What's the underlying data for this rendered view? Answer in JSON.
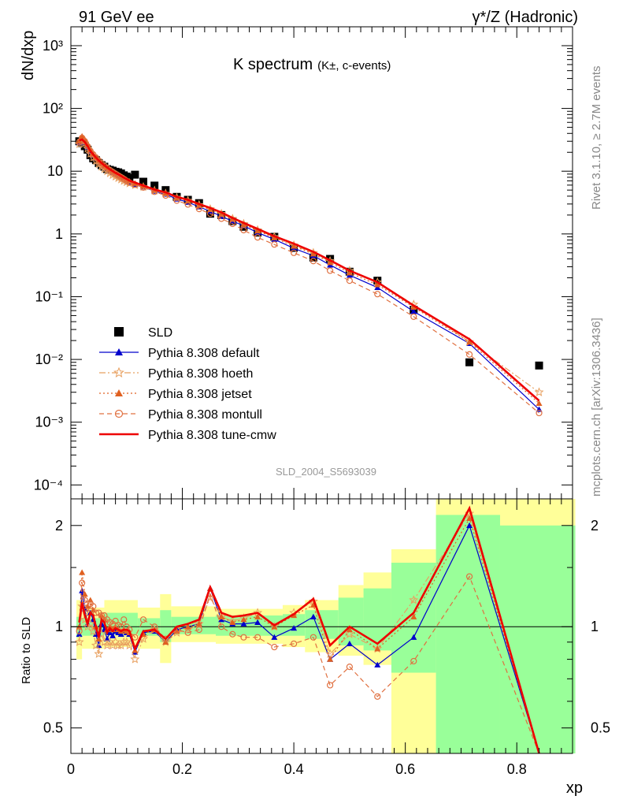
{
  "header": {
    "left": "91 GeV ee",
    "right": "γ*/Z (Hadronic)"
  },
  "side": {
    "rivet": "Rivet 3.1.10, ≥ 2.7M events",
    "mcplots": "mcplots.cern.ch [arXiv:1306.3436]"
  },
  "colors": {
    "sld": "#000000",
    "default": "#0000cc",
    "hoeth": "#e8a060",
    "jetset": "#e06020",
    "montull": "#e07040",
    "tune_cmw": "#ee0000",
    "band_inner": "#99ff99",
    "band_outer": "#ffff99"
  },
  "chart_data": [
    {
      "type": "scatter",
      "title": "K spectrum",
      "title_sub": "(K±, c-events)",
      "analysis": "SLD_2004_S5693039",
      "ylabel": "dN/dxp",
      "yscale": "log",
      "ylim": [
        6e-05,
        2000
      ],
      "xlim": [
        0,
        0.9
      ],
      "yticks": [
        {
          "v": 1000,
          "label": "10³"
        },
        {
          "v": 100,
          "label": "10²"
        },
        {
          "v": 10,
          "label": "10"
        },
        {
          "v": 1,
          "label": "1"
        },
        {
          "v": 0.1,
          "label": "10⁻¹"
        },
        {
          "v": 0.01,
          "label": "10⁻²"
        },
        {
          "v": 0.001,
          "label": "10⁻³"
        },
        {
          "v": 0.0001,
          "label": "10⁻⁴"
        }
      ],
      "legend_position": "left-middle",
      "x": [
        0.015,
        0.02,
        0.025,
        0.03,
        0.035,
        0.04,
        0.045,
        0.05,
        0.055,
        0.06,
        0.065,
        0.07,
        0.075,
        0.08,
        0.085,
        0.09,
        0.095,
        0.1,
        0.105,
        0.115,
        0.13,
        0.15,
        0.17,
        0.19,
        0.21,
        0.23,
        0.25,
        0.27,
        0.29,
        0.31,
        0.335,
        0.365,
        0.4,
        0.435,
        0.465,
        0.5,
        0.55,
        0.615,
        0.715,
        0.84
      ],
      "series": [
        {
          "name": "SLD",
          "key": "sld",
          "marker": "square",
          "values": [
            30,
            28,
            25,
            22,
            18,
            16,
            15,
            13.5,
            12.5,
            11.8,
            10.8,
            10.5,
            10.2,
            9.8,
            9.6,
            9.2,
            8.6,
            8.2,
            7.8,
            8.8,
            6.8,
            5.9,
            5.0,
            3.9,
            3.5,
            3.1,
            2.1,
            2.0,
            1.6,
            1.3,
            1.05,
            0.9,
            0.6,
            0.42,
            0.4,
            0.25,
            0.18,
            0.062,
            0.009,
            0.008
          ]
        },
        {
          "name": "Pythia 8.308 default",
          "key": "default",
          "marker": "triangle",
          "line": "solid",
          "values": [
            28.5,
            33,
            29,
            24,
            20.5,
            18,
            16.2,
            14.5,
            13.2,
            12.0,
            11.1,
            10.3,
            9.6,
            9.0,
            8.4,
            7.9,
            7.5,
            7.1,
            6.7,
            6.1,
            5.6,
            4.8,
            4.3,
            3.6,
            3.2,
            2.7,
            2.3,
            1.9,
            1.6,
            1.35,
            1.05,
            0.82,
            0.59,
            0.45,
            0.32,
            0.22,
            0.14,
            0.058,
            0.018,
            0.0016
          ]
        },
        {
          "name": "Pythia 8.308 hoeth",
          "key": "hoeth",
          "marker": "star",
          "line": "dashdot",
          "values": [
            27,
            31,
            28,
            23,
            19,
            16.5,
            14.5,
            13,
            11.8,
            10.8,
            10.0,
            9.3,
            8.7,
            8.2,
            7.8,
            7.4,
            7.0,
            6.7,
            6.4,
            6.0,
            5.6,
            4.9,
            4.4,
            3.8,
            3.4,
            2.9,
            2.5,
            2.1,
            1.75,
            1.45,
            1.15,
            0.9,
            0.66,
            0.5,
            0.37,
            0.26,
            0.17,
            0.075,
            0.019,
            0.003
          ]
        },
        {
          "name": "Pythia 8.308 jetset",
          "key": "jetset",
          "marker": "triangle",
          "line": "dotted",
          "values": [
            30,
            36,
            32,
            27,
            22,
            19,
            16.8,
            15,
            13.6,
            12.4,
            11.5,
            10.7,
            10.0,
            9.4,
            8.8,
            8.3,
            7.8,
            7.3,
            6.9,
            6.4,
            5.8,
            5.0,
            4.5,
            3.8,
            3.35,
            2.85,
            2.45,
            2.05,
            1.72,
            1.42,
            1.12,
            0.87,
            0.64,
            0.48,
            0.35,
            0.24,
            0.155,
            0.068,
            0.019,
            0.002
          ]
        },
        {
          "name": "Pythia 8.308 montull",
          "key": "montull",
          "marker": "circle",
          "line": "dashed",
          "values": [
            29,
            34,
            30,
            25,
            21,
            18.5,
            16.5,
            14.8,
            13.4,
            12.2,
            11.3,
            10.4,
            9.7,
            9.1,
            8.5,
            8.0,
            7.5,
            7.0,
            6.6,
            6.1,
            5.5,
            4.7,
            4.1,
            3.4,
            2.95,
            2.5,
            2.1,
            1.75,
            1.45,
            1.15,
            0.88,
            0.68,
            0.5,
            0.37,
            0.26,
            0.18,
            0.11,
            0.048,
            0.012,
            0.0014
          ]
        },
        {
          "name": "Pythia 8.308 tune-cmw",
          "key": "tune_cmw",
          "marker": "none",
          "line": "solid-thick",
          "values": [
            31,
            32,
            29,
            25,
            21,
            18.5,
            16.5,
            14.8,
            13.5,
            12.4,
            11.5,
            10.7,
            10.0,
            9.4,
            8.9,
            8.4,
            7.9,
            7.5,
            7.1,
            6.6,
            5.9,
            5.1,
            4.6,
            3.9,
            3.5,
            3.0,
            2.6,
            2.2,
            1.8,
            1.5,
            1.2,
            0.92,
            0.7,
            0.52,
            0.38,
            0.26,
            0.17,
            0.072,
            0.021,
            0.0022
          ]
        }
      ]
    },
    {
      "type": "line",
      "ylabel": "Ratio to SLD",
      "xlabel": "xp",
      "yscale": "log",
      "ylim": [
        0.42,
        2.4
      ],
      "xlim": [
        0,
        0.9
      ],
      "yticks": [
        {
          "v": 0.5,
          "label": "0.5"
        },
        {
          "v": 1,
          "label": "1"
        },
        {
          "v": 2,
          "label": "2"
        }
      ],
      "xticks": [
        {
          "v": 0,
          "label": "0"
        },
        {
          "v": 0.2,
          "label": "0.2"
        },
        {
          "v": 0.4,
          "label": "0.4"
        },
        {
          "v": 0.6,
          "label": "0.6"
        },
        {
          "v": 0.8,
          "label": "0.8"
        }
      ],
      "bands": [
        {
          "x0": 0.01,
          "x1": 0.02,
          "inner": [
            0.93,
            1.07
          ],
          "outer": [
            0.8,
            1.2
          ]
        },
        {
          "x0": 0.02,
          "x1": 0.06,
          "inner": [
            0.94,
            1.06
          ],
          "outer": [
            0.86,
            1.14
          ]
        },
        {
          "x0": 0.06,
          "x1": 0.12,
          "inner": [
            0.95,
            1.1
          ],
          "outer": [
            0.87,
            1.2
          ]
        },
        {
          "x0": 0.12,
          "x1": 0.16,
          "inner": [
            0.94,
            1.06
          ],
          "outer": [
            0.86,
            1.14
          ]
        },
        {
          "x0": 0.16,
          "x1": 0.18,
          "inner": [
            0.9,
            1.12
          ],
          "outer": [
            0.78,
            1.25
          ]
        },
        {
          "x0": 0.18,
          "x1": 0.26,
          "inner": [
            0.95,
            1.07
          ],
          "outer": [
            0.9,
            1.15
          ]
        },
        {
          "x0": 0.26,
          "x1": 0.38,
          "inner": [
            0.94,
            1.08
          ],
          "outer": [
            0.89,
            1.13
          ]
        },
        {
          "x0": 0.38,
          "x1": 0.42,
          "inner": [
            0.94,
            1.09
          ],
          "outer": [
            0.87,
            1.16
          ]
        },
        {
          "x0": 0.42,
          "x1": 0.48,
          "inner": [
            0.92,
            1.12
          ],
          "outer": [
            0.84,
            1.2
          ]
        },
        {
          "x0": 0.48,
          "x1": 0.525,
          "inner": [
            0.88,
            1.22
          ],
          "outer": [
            0.82,
            1.33
          ]
        },
        {
          "x0": 0.525,
          "x1": 0.575,
          "inner": [
            0.85,
            1.3
          ],
          "outer": [
            0.77,
            1.45
          ]
        },
        {
          "x0": 0.575,
          "x1": 0.655,
          "inner": [
            0.73,
            1.55
          ],
          "outer": [
            0.4,
            1.7
          ]
        },
        {
          "x0": 0.655,
          "x1": 0.77,
          "inner": [
            0.4,
            2.15
          ],
          "outer": [
            0.4,
            2.5
          ]
        },
        {
          "x0": 0.77,
          "x1": 0.905,
          "inner": [
            0.4,
            2.0
          ],
          "outer": [
            0.4,
            2.5
          ]
        }
      ],
      "x": [
        0.015,
        0.02,
        0.025,
        0.03,
        0.035,
        0.04,
        0.045,
        0.05,
        0.055,
        0.06,
        0.065,
        0.07,
        0.075,
        0.08,
        0.085,
        0.09,
        0.095,
        0.1,
        0.105,
        0.115,
        0.13,
        0.15,
        0.17,
        0.19,
        0.21,
        0.23,
        0.25,
        0.27,
        0.29,
        0.31,
        0.335,
        0.365,
        0.4,
        0.435,
        0.465,
        0.5,
        0.55,
        0.615,
        0.715,
        0.84
      ],
      "series": [
        {
          "name": "Pythia 8.308 default",
          "key": "default",
          "marker": "triangle",
          "line": "solid",
          "values": [
            0.95,
            1.28,
            1.13,
            1.02,
            1.1,
            1.05,
            0.95,
            0.88,
            1.02,
            0.98,
            0.92,
            0.96,
            0.94,
            0.97,
            0.96,
            0.95,
            0.97,
            0.96,
            0.95,
            0.84,
            0.96,
            0.97,
            0.9,
            0.98,
            1.0,
            1.02,
            1.3,
            1.05,
            1.02,
            1.02,
            1.03,
            0.93,
            0.99,
            1.07,
            0.8,
            0.89,
            0.77,
            0.93,
            2.0,
            0.38
          ]
        },
        {
          "name": "Pythia 8.308 hoeth",
          "key": "hoeth",
          "marker": "star",
          "line": "dashdot",
          "values": [
            0.9,
            1.15,
            1.05,
            1.0,
            1.02,
            0.97,
            0.88,
            0.83,
            0.95,
            0.9,
            0.88,
            0.9,
            0.88,
            0.9,
            0.88,
            0.88,
            0.9,
            0.9,
            0.88,
            0.8,
            0.92,
            0.98,
            0.9,
            0.96,
            0.98,
            1.02,
            1.22,
            1.07,
            1.04,
            1.06,
            1.1,
            1.0,
            1.1,
            1.19,
            0.83,
            0.95,
            0.86,
            1.2,
            2.17,
            0.38
          ]
        },
        {
          "name": "Pythia 8.308 jetset",
          "key": "jetset",
          "marker": "triangle",
          "line": "dotted",
          "values": [
            1.0,
            1.45,
            1.25,
            1.15,
            1.2,
            1.12,
            1.0,
            0.92,
            1.08,
            1.05,
            0.98,
            1.0,
            0.98,
            1.0,
            0.98,
            0.97,
            0.98,
            0.97,
            0.96,
            0.85,
            0.95,
            0.98,
            0.9,
            0.97,
            1.0,
            1.02,
            1.3,
            1.07,
            1.03,
            1.05,
            1.07,
            1.0,
            1.08,
            1.16,
            0.8,
            0.98,
            0.86,
            1.07,
            2.1,
            0.38
          ]
        },
        {
          "name": "Pythia 8.308 montull",
          "key": "montull",
          "marker": "circle",
          "line": "dashed",
          "values": [
            0.97,
            1.35,
            1.2,
            1.1,
            1.17,
            1.15,
            1.1,
            1.1,
            1.08,
            1.08,
            1.05,
            1.03,
            1.02,
            1.04,
            1.01,
            1.0,
            1.05,
            1.0,
            0.98,
            0.93,
            1.05,
            1.0,
            0.92,
            0.98,
            0.96,
            0.98,
            1.25,
            1.0,
            0.95,
            0.93,
            0.93,
            0.87,
            0.89,
            0.93,
            0.67,
            0.76,
            0.62,
            0.79,
            1.41,
            0.38
          ]
        },
        {
          "name": "Pythia 8.308 tune-cmw",
          "key": "tune_cmw",
          "marker": "none",
          "line": "solid-thick",
          "values": [
            1.03,
            1.18,
            1.08,
            1.02,
            1.1,
            1.08,
            1.0,
            0.93,
            1.05,
            1.03,
            0.96,
            0.99,
            0.97,
            0.99,
            0.98,
            0.97,
            0.98,
            0.98,
            0.97,
            0.86,
            0.97,
            0.98,
            0.92,
            1.0,
            1.02,
            1.05,
            1.31,
            1.1,
            1.07,
            1.08,
            1.1,
            1.01,
            1.09,
            1.21,
            0.88,
            1.0,
            0.89,
            1.1,
            2.25,
            0.38
          ]
        }
      ]
    }
  ]
}
